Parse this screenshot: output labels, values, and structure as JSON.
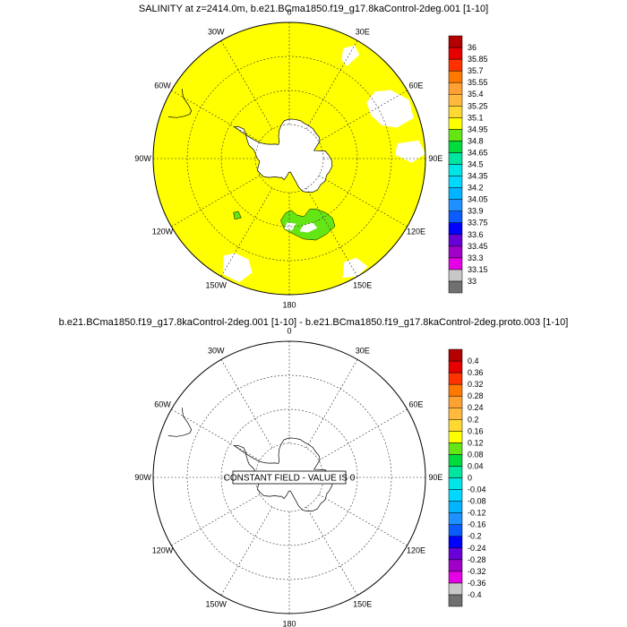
{
  "chart_data": [
    {
      "type": "heatmap",
      "title": "SALINITY at z=2414.0m, b.e21.BCma1850.f19_g17.8kaControl-2deg.001 [1-10]",
      "projection": "south polar stereographic",
      "lon_labels": [
        "0",
        "30E",
        "60E",
        "90E",
        "120E",
        "150E",
        "180",
        "150W",
        "120W",
        "90W",
        "60W",
        "30W"
      ],
      "colorbar": {
        "labels": [
          "33",
          "33.15",
          "33.3",
          "33.45",
          "33.6",
          "33.75",
          "33.9",
          "34.05",
          "34.2",
          "34.35",
          "34.5",
          "34.65",
          "34.8",
          "34.95",
          "35.1",
          "35.25",
          "35.4",
          "35.55",
          "35.7",
          "35.85",
          "36"
        ],
        "colors": [
          "#707070",
          "#c8c8c8",
          "#e600e6",
          "#a000c8",
          "#6a00d8",
          "#0000ff",
          "#0a5cff",
          "#1e90ff",
          "#00b4ff",
          "#00d8ff",
          "#00e6e6",
          "#00e6a0",
          "#00dc3c",
          "#64e614",
          "#ffff00",
          "#ffd932",
          "#ffb93c",
          "#ffa032",
          "#ff7800",
          "#ff3200",
          "#e60000",
          "#b40000"
        ]
      },
      "field_color": "#ffff00",
      "shelf_anomaly_color": "#64e614"
    },
    {
      "type": "heatmap",
      "title": "b.e21.BCma1850.f19_g17.8kaControl-2deg.001 [1-10] - b.e21.BCma1850.f19_g17.8kaControl-2deg.proto.003 [1-10]",
      "projection": "south polar stereographic",
      "lon_labels": [
        "0",
        "30E",
        "60E",
        "90E",
        "120E",
        "150E",
        "180",
        "150W",
        "120W",
        "90W",
        "60W",
        "30W"
      ],
      "annotation": "CONSTANT FIELD - VALUE IS 0",
      "colorbar": {
        "labels": [
          "-0.4",
          "-0.36",
          "-0.32",
          "-0.28",
          "-0.24",
          "-0.2",
          "-0.16",
          "-0.12",
          "-0.08",
          "-0.04",
          "0",
          "0.04",
          "0.08",
          "0.12",
          "0.16",
          "0.2",
          "0.24",
          "0.28",
          "0.32",
          "0.36",
          "0.4"
        ],
        "colors": [
          "#707070",
          "#c8c8c8",
          "#e600e6",
          "#a000c8",
          "#6a00d8",
          "#0000ff",
          "#0a5cff",
          "#1e90ff",
          "#00b4ff",
          "#00d8ff",
          "#00e6e6",
          "#00e6a0",
          "#00dc3c",
          "#64e614",
          "#ffff00",
          "#ffd932",
          "#ffb93c",
          "#ffa032",
          "#ff7800",
          "#ff3200",
          "#e60000",
          "#b40000"
        ]
      }
    }
  ]
}
